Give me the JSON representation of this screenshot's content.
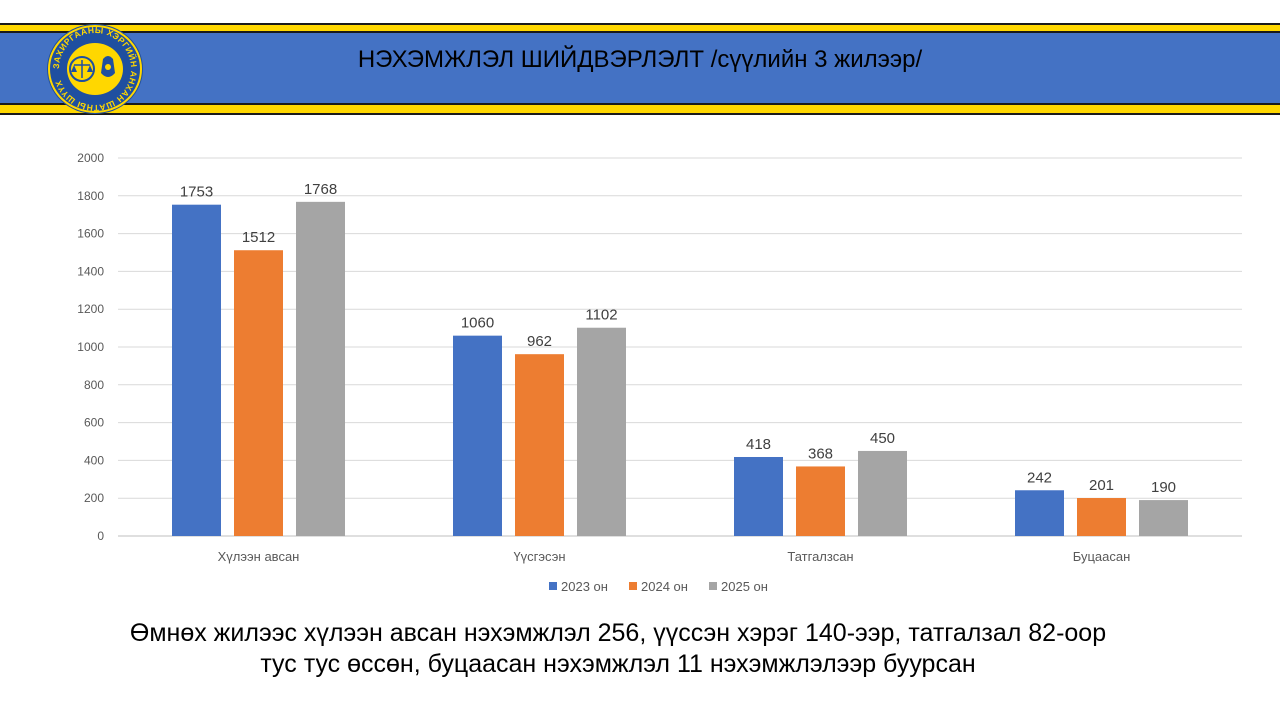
{
  "header": {
    "title": "НЭХЭМЖЛЭЛ ШИЙДВЭРЛЭЛТ /сүүлийн 3 жилээр/",
    "logo_text": "ЗАХИРГААНЫ ХЭРГИЙН АНХАН ШАТНЫ ШҮҮХ"
  },
  "colors": {
    "header_blue": "#4472C4",
    "stripe_yellow": "#FFD700",
    "series_2023": "#4472C4",
    "series_2024": "#ED7D31",
    "series_2025": "#A5A5A5"
  },
  "chart_data": {
    "type": "bar",
    "title": "",
    "xlabel": "",
    "ylabel": "",
    "categories": [
      "Хүлээн авсан",
      "Үүсгэсэн",
      "Татгалзсан",
      "Буцаасан"
    ],
    "series": [
      {
        "name": "2023 он",
        "values": [
          1753,
          1060,
          418,
          242
        ]
      },
      {
        "name": "2024 он",
        "values": [
          1512,
          962,
          368,
          201
        ]
      },
      {
        "name": "2025 он",
        "values": [
          1768,
          1102,
          450,
          190
        ]
      }
    ],
    "ylim": [
      0,
      2000
    ],
    "yticks": [
      "0",
      "200",
      "400",
      "600",
      "800",
      "1000",
      "1200",
      "1400",
      "1600",
      "1800",
      "2000"
    ],
    "grid": true,
    "legend_position": "bottom"
  },
  "caption": {
    "line1": "Өмнөх жилээс хүлээн авсан нэхэмжлэл 256, үүссэн хэрэг 140-ээр, татгалзал 82-оор",
    "line2": "тус тус өссөн, буцаасан нэхэмжлэл 11 нэхэмжлэлээр буурсан"
  }
}
